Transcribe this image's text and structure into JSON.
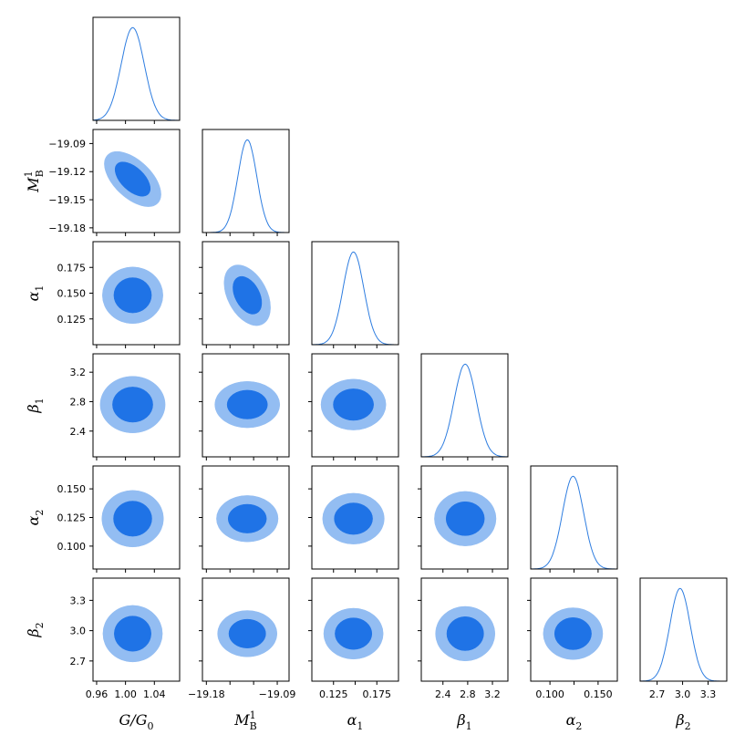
{
  "chart_data": {
    "type": "corner",
    "parameters": [
      {
        "key": "G/G0",
        "label": "G/G",
        "label_subscript": "0",
        "label_superscript": "",
        "range": [
          0.955,
          1.075
        ],
        "ticks": [
          0.96,
          1.0,
          1.04
        ],
        "tick_labels": [
          "0.96",
          "1.00",
          "1.04"
        ],
        "mean": 1.01,
        "sigma": 0.016
      },
      {
        "key": "M_B^1",
        "label": "M",
        "label_subscript": "B",
        "label_superscript": "1",
        "range": [
          -19.185,
          -19.075
        ],
        "ticks": [
          -19.18,
          -19.15,
          -19.12,
          -19.09
        ],
        "tick_labels": [
          "−19.18",
          "−19.15",
          "−19.12",
          "−19.09"
        ],
        "x_tick_labels_shown": [
          "−19.18",
          "",
          "",
          "−19.09"
        ],
        "mean": -19.128,
        "sigma": 0.012
      },
      {
        "key": "alpha_1",
        "label": "α",
        "label_subscript": "1",
        "label_superscript": "",
        "range": [
          0.1,
          0.2
        ],
        "ticks": [
          0.125,
          0.15,
          0.175
        ],
        "tick_labels": [
          "0.125",
          "0.150",
          "0.175"
        ],
        "x_tick_labels_shown": [
          "0.125",
          "",
          "0.175"
        ],
        "mean": 0.148,
        "sigma": 0.012
      },
      {
        "key": "beta_1",
        "label": "β",
        "label_subscript": "1",
        "label_superscript": "",
        "range": [
          2.05,
          3.45
        ],
        "ticks": [
          2.4,
          2.8,
          3.2
        ],
        "tick_labels": [
          "2.4",
          "2.8",
          "3.2"
        ],
        "mean": 2.76,
        "sigma": 0.18
      },
      {
        "key": "alpha_2",
        "label": "α",
        "label_subscript": "2",
        "label_superscript": "",
        "range": [
          0.08,
          0.17
        ],
        "ticks": [
          0.1,
          0.125,
          0.15
        ],
        "tick_labels": [
          "0.100",
          "0.125",
          "0.150"
        ],
        "x_tick_labels_shown": [
          "0.100",
          "",
          "0.150"
        ],
        "mean": 0.124,
        "sigma": 0.011
      },
      {
        "key": "beta_2",
        "label": "β",
        "label_subscript": "2",
        "label_superscript": "",
        "range": [
          2.5,
          3.52
        ],
        "ticks": [
          2.7,
          3.0,
          3.3
        ],
        "tick_labels": [
          "2.7",
          "3.0",
          "3.3"
        ],
        "mean": 2.97,
        "sigma": 0.12
      }
    ],
    "correlations": [
      {
        "pair": [
          "G/G0",
          "M_B^1"
        ],
        "rho": -0.55
      },
      {
        "pair": [
          "M_B^1",
          "alpha_1"
        ],
        "rho": -0.4
      },
      {
        "pair": [
          "G/G0",
          "alpha_1"
        ],
        "rho": 0.0
      }
    ],
    "contour_levels": [
      "68%",
      "95%"
    ],
    "colors": {
      "inner": "#1f73e6",
      "outer": "#93bdf2",
      "line": "#2e7de0",
      "frame": "#000000"
    },
    "grid": false,
    "legend": "none"
  }
}
